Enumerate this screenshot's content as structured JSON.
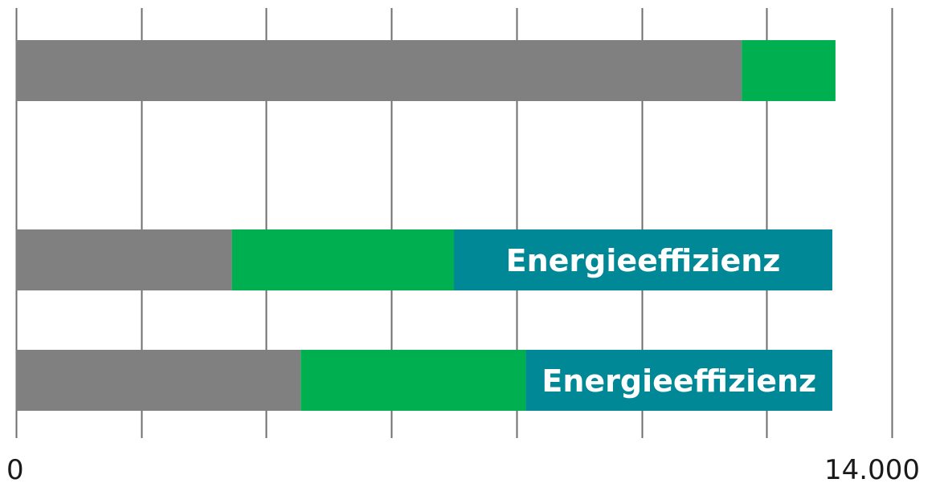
{
  "chart_data": {
    "type": "bar",
    "orientation": "horizontal",
    "stacked": true,
    "xlim": [
      0,
      14000
    ],
    "grid": true,
    "tick_labels": [
      "0",
      "14.000"
    ],
    "bars": [
      {
        "segments": [
          {
            "value": 11600,
            "color": "#808080",
            "label": ""
          },
          {
            "value": 1500,
            "color": "#00b050",
            "label": ""
          }
        ]
      },
      {
        "segments": [
          {
            "value": 3450,
            "color": "#808080",
            "label": ""
          },
          {
            "value": 3550,
            "color": "#00b050",
            "label": ""
          },
          {
            "value": 6050,
            "color": "#008896",
            "label": "Energieeffizienz"
          }
        ]
      },
      {
        "segments": [
          {
            "value": 4550,
            "color": "#808080",
            "label": ""
          },
          {
            "value": 3600,
            "color": "#00b050",
            "label": ""
          },
          {
            "value": 4900,
            "color": "#008896",
            "label": "Energieeffizienz"
          }
        ]
      }
    ]
  }
}
